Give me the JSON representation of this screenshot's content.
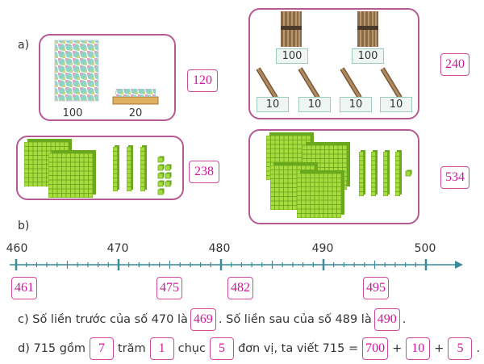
{
  "part_a": {
    "label": "a)",
    "panels": [
      {
        "captions": [
          "100",
          "20"
        ],
        "answer": "120"
      },
      {
        "captions": [
          "100",
          "100",
          "10",
          "10",
          "10",
          "10"
        ],
        "answer": "240"
      },
      {
        "answer": "238"
      },
      {
        "answer": "534"
      }
    ]
  },
  "part_b": {
    "label": "b)",
    "ticks": [
      "460",
      "470",
      "480",
      "490",
      "500"
    ],
    "answers": [
      "461",
      "475",
      "482",
      "495"
    ]
  },
  "part_c": {
    "parts": [
      "c) Số liền trước của số 470 là",
      ". Số liền sau của số 489 là",
      "."
    ],
    "answers": [
      "469",
      "490"
    ]
  },
  "part_d": {
    "parts": [
      "d) 715 gồm",
      "trăm",
      "chục",
      "đơn vị, ta viết 715 =",
      "+",
      "+",
      "."
    ],
    "answers": [
      "7",
      "1",
      "5",
      "700",
      "10",
      "5"
    ]
  }
}
